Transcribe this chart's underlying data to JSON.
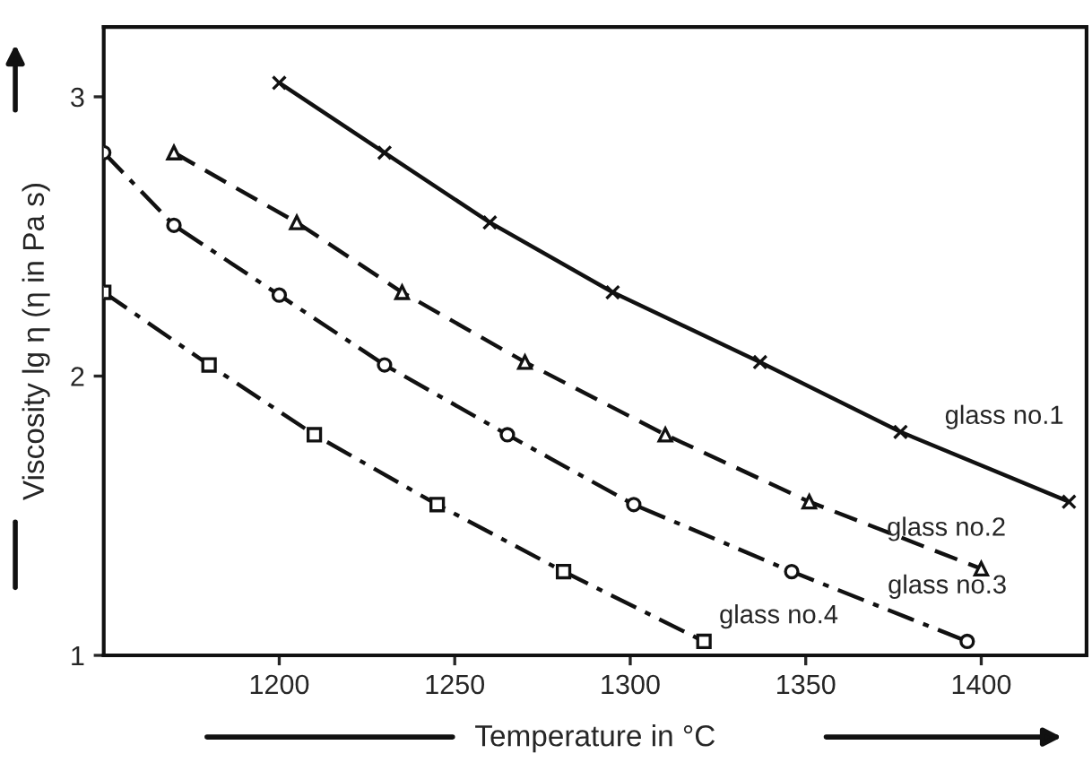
{
  "chart_data": {
    "type": "line",
    "xlabel": "Temperature in °C",
    "ylabel": "Viscosity lg η (η in Pa s)",
    "xlim": [
      1150,
      1430
    ],
    "xticks": [
      1200,
      1250,
      1300,
      1350,
      1400
    ],
    "ylim": [
      1,
      3.25
    ],
    "yticks": [
      1,
      2,
      3
    ],
    "grid": false,
    "legend": false,
    "series": [
      {
        "name": "glass no.1",
        "color": "#111111",
        "marker": "cross",
        "line_style": "solid",
        "x": [
          1200,
          1230,
          1260,
          1295,
          1337,
          1377,
          1425
        ],
        "values": [
          3.05,
          2.8,
          2.55,
          2.3,
          2.05,
          1.8,
          1.55
        ]
      },
      {
        "name": "glass no.2",
        "color": "#111111",
        "marker": "triangle",
        "line_style": "dashed",
        "x": [
          1170,
          1205,
          1235,
          1270,
          1310,
          1351,
          1400
        ],
        "values": [
          2.8,
          2.55,
          2.3,
          2.05,
          1.79,
          1.55,
          1.31
        ]
      },
      {
        "name": "glass no.3",
        "color": "#111111",
        "marker": "circle",
        "line_style": "dashdot",
        "x": [
          1150,
          1170,
          1200,
          1230,
          1265,
          1301,
          1346,
          1396
        ],
        "values": [
          2.8,
          2.54,
          2.29,
          2.04,
          1.79,
          1.54,
          1.3,
          1.05
        ]
      },
      {
        "name": "glass no.4",
        "color": "#111111",
        "marker": "square",
        "line_style": "dashdot",
        "x": [
          1150,
          1180,
          1210,
          1245,
          1281,
          1321
        ],
        "values": [
          2.3,
          2.04,
          1.79,
          1.54,
          1.3,
          1.05
        ]
      }
    ]
  }
}
